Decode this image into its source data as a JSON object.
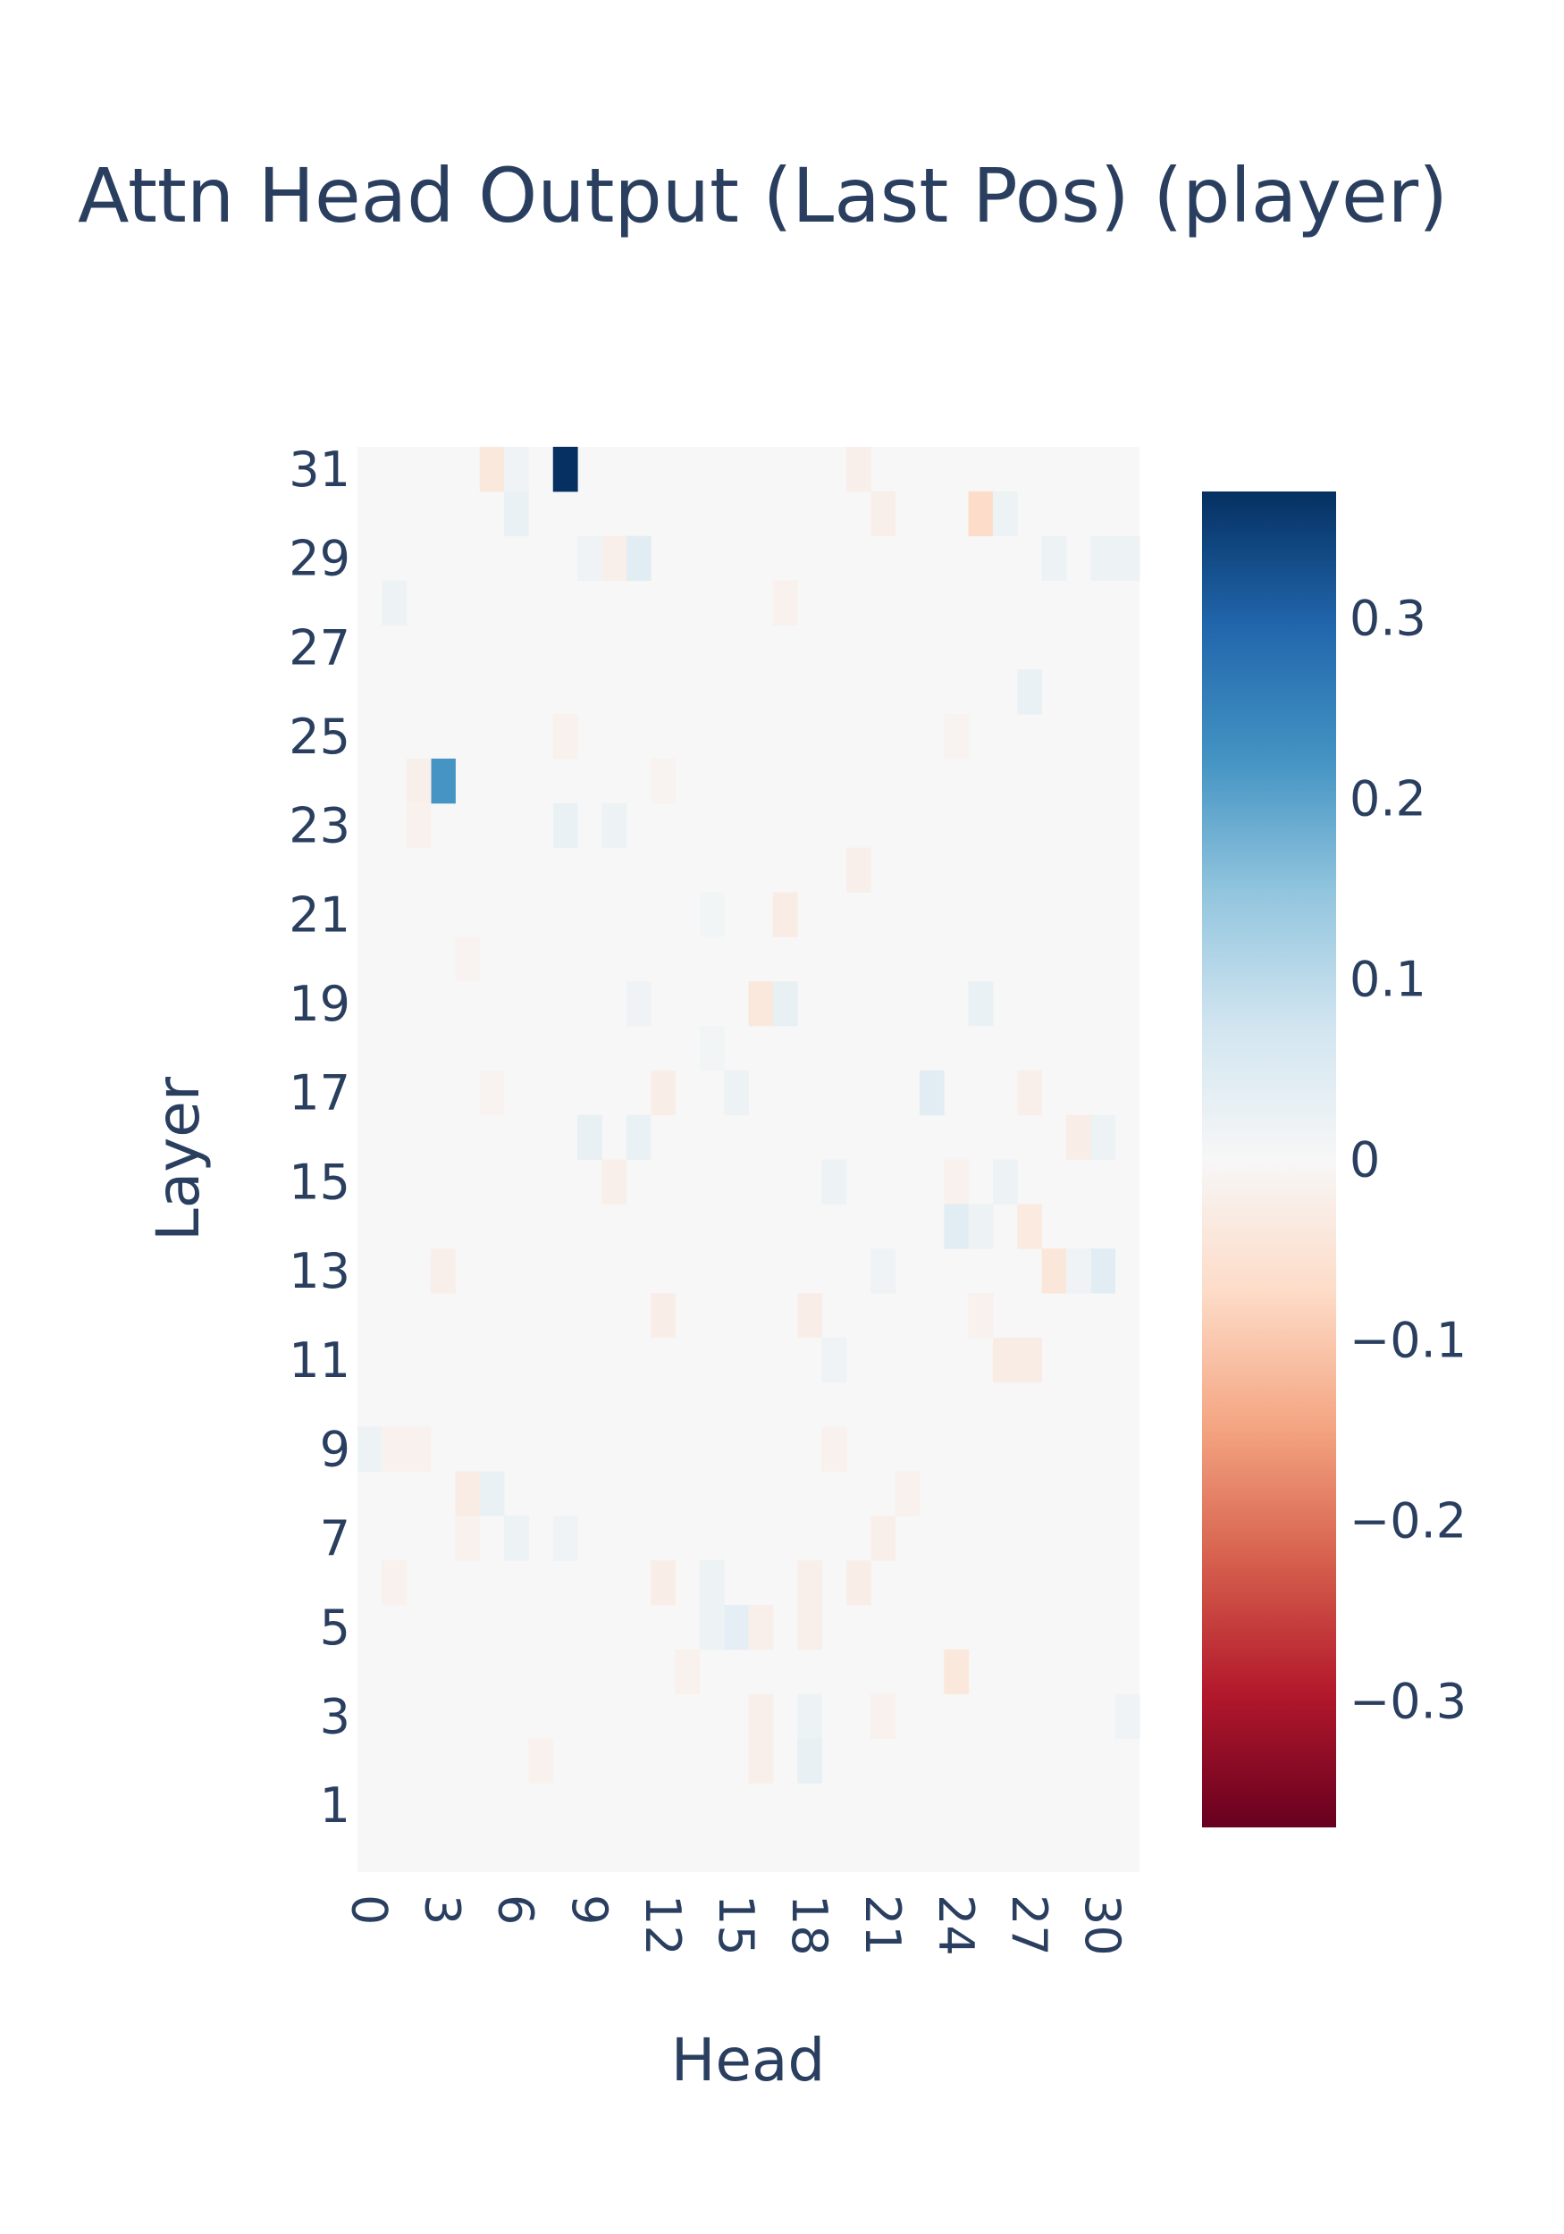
{
  "chart_data": {
    "type": "heatmap",
    "title": "Attn Head Output (Last Pos) (player)",
    "xlabel": "Head",
    "ylabel": "Layer",
    "x_range": [
      0,
      31
    ],
    "y_range": [
      0,
      31
    ],
    "x_ticks": [
      "0",
      "3",
      "6",
      "9",
      "12",
      "15",
      "18",
      "21",
      "24",
      "27",
      "30"
    ],
    "y_ticks": [
      "1",
      "3",
      "5",
      "7",
      "9",
      "11",
      "13",
      "15",
      "17",
      "19",
      "21",
      "23",
      "25",
      "27",
      "29",
      "31"
    ],
    "colorscale": "RdBu",
    "zmin": -0.37,
    "zmax": 0.37,
    "colorbar_ticks": [
      "0.3",
      "0.2",
      "0.1",
      "0",
      "−0.1",
      "−0.2",
      "−0.3"
    ],
    "colorbar_tick_values": [
      0.3,
      0.2,
      0.1,
      0,
      -0.1,
      -0.2,
      -0.3
    ],
    "background_value": 0,
    "cells": [
      {
        "layer": 31,
        "head": 8,
        "value": 0.37
      },
      {
        "layer": 31,
        "head": 5,
        "value": -0.04
      },
      {
        "layer": 31,
        "head": 6,
        "value": 0.015
      },
      {
        "layer": 31,
        "head": 20,
        "value": -0.02
      },
      {
        "layer": 30,
        "head": 6,
        "value": 0.025
      },
      {
        "layer": 30,
        "head": 21,
        "value": -0.02
      },
      {
        "layer": 30,
        "head": 25,
        "value": -0.07
      },
      {
        "layer": 30,
        "head": 26,
        "value": 0.02
      },
      {
        "layer": 29,
        "head": 11,
        "value": 0.04
      },
      {
        "layer": 29,
        "head": 10,
        "value": -0.02
      },
      {
        "layer": 29,
        "head": 9,
        "value": 0.015
      },
      {
        "layer": 29,
        "head": 28,
        "value": 0.02
      },
      {
        "layer": 29,
        "head": 30,
        "value": 0.02
      },
      {
        "layer": 29,
        "head": 31,
        "value": 0.02
      },
      {
        "layer": 28,
        "head": 1,
        "value": 0.02
      },
      {
        "layer": 28,
        "head": 17,
        "value": -0.015
      },
      {
        "layer": 26,
        "head": 27,
        "value": 0.025
      },
      {
        "layer": 25,
        "head": 8,
        "value": -0.015
      },
      {
        "layer": 25,
        "head": 24,
        "value": -0.01
      },
      {
        "layer": 24,
        "head": 3,
        "value": 0.22
      },
      {
        "layer": 24,
        "head": 2,
        "value": -0.02
      },
      {
        "layer": 24,
        "head": 12,
        "value": -0.01
      },
      {
        "layer": 23,
        "head": 8,
        "value": 0.025
      },
      {
        "layer": 23,
        "head": 10,
        "value": 0.02
      },
      {
        "layer": 23,
        "head": 2,
        "value": -0.015
      },
      {
        "layer": 22,
        "head": 20,
        "value": -0.02
      },
      {
        "layer": 21,
        "head": 17,
        "value": -0.03
      },
      {
        "layer": 21,
        "head": 14,
        "value": 0.01
      },
      {
        "layer": 20,
        "head": 4,
        "value": -0.01
      },
      {
        "layer": 19,
        "head": 16,
        "value": -0.04
      },
      {
        "layer": 19,
        "head": 17,
        "value": 0.03
      },
      {
        "layer": 19,
        "head": 25,
        "value": 0.025
      },
      {
        "layer": 19,
        "head": 11,
        "value": 0.015
      },
      {
        "layer": 18,
        "head": 14,
        "value": 0.01
      },
      {
        "layer": 17,
        "head": 23,
        "value": 0.04
      },
      {
        "layer": 17,
        "head": 12,
        "value": -0.025
      },
      {
        "layer": 17,
        "head": 15,
        "value": 0.02
      },
      {
        "layer": 17,
        "head": 27,
        "value": -0.02
      },
      {
        "layer": 17,
        "head": 5,
        "value": -0.01
      },
      {
        "layer": 16,
        "head": 9,
        "value": 0.03
      },
      {
        "layer": 16,
        "head": 11,
        "value": 0.025
      },
      {
        "layer": 16,
        "head": 29,
        "value": -0.025
      },
      {
        "layer": 16,
        "head": 30,
        "value": 0.02
      },
      {
        "layer": 15,
        "head": 19,
        "value": 0.02
      },
      {
        "layer": 15,
        "head": 26,
        "value": 0.02
      },
      {
        "layer": 15,
        "head": 10,
        "value": -0.02
      },
      {
        "layer": 15,
        "head": 24,
        "value": -0.015
      },
      {
        "layer": 14,
        "head": 24,
        "value": 0.04
      },
      {
        "layer": 14,
        "head": 25,
        "value": 0.02
      },
      {
        "layer": 14,
        "head": 27,
        "value": -0.035
      },
      {
        "layer": 13,
        "head": 28,
        "value": -0.045
      },
      {
        "layer": 13,
        "head": 30,
        "value": 0.04
      },
      {
        "layer": 13,
        "head": 29,
        "value": 0.015
      },
      {
        "layer": 13,
        "head": 3,
        "value": -0.02
      },
      {
        "layer": 13,
        "head": 21,
        "value": 0.015
      },
      {
        "layer": 12,
        "head": 12,
        "value": -0.025
      },
      {
        "layer": 12,
        "head": 18,
        "value": -0.025
      },
      {
        "layer": 12,
        "head": 25,
        "value": -0.015
      },
      {
        "layer": 11,
        "head": 26,
        "value": -0.03
      },
      {
        "layer": 11,
        "head": 27,
        "value": -0.03
      },
      {
        "layer": 11,
        "head": 19,
        "value": 0.015
      },
      {
        "layer": 9,
        "head": 0,
        "value": 0.02
      },
      {
        "layer": 9,
        "head": 1,
        "value": -0.015
      },
      {
        "layer": 9,
        "head": 2,
        "value": -0.015
      },
      {
        "layer": 9,
        "head": 19,
        "value": -0.015
      },
      {
        "layer": 8,
        "head": 4,
        "value": -0.03
      },
      {
        "layer": 8,
        "head": 5,
        "value": 0.025
      },
      {
        "layer": 8,
        "head": 22,
        "value": -0.015
      },
      {
        "layer": 7,
        "head": 6,
        "value": 0.02
      },
      {
        "layer": 7,
        "head": 8,
        "value": 0.015
      },
      {
        "layer": 7,
        "head": 21,
        "value": -0.02
      },
      {
        "layer": 7,
        "head": 4,
        "value": -0.015
      },
      {
        "layer": 6,
        "head": 12,
        "value": -0.025
      },
      {
        "layer": 6,
        "head": 14,
        "value": 0.02
      },
      {
        "layer": 6,
        "head": 20,
        "value": -0.025
      },
      {
        "layer": 6,
        "head": 18,
        "value": -0.02
      },
      {
        "layer": 6,
        "head": 1,
        "value": -0.015
      },
      {
        "layer": 5,
        "head": 15,
        "value": 0.035
      },
      {
        "layer": 5,
        "head": 14,
        "value": 0.02
      },
      {
        "layer": 5,
        "head": 16,
        "value": -0.02
      },
      {
        "layer": 5,
        "head": 18,
        "value": -0.02
      },
      {
        "layer": 4,
        "head": 24,
        "value": -0.04
      },
      {
        "layer": 4,
        "head": 13,
        "value": -0.015
      },
      {
        "layer": 3,
        "head": 18,
        "value": 0.02
      },
      {
        "layer": 3,
        "head": 16,
        "value": -0.02
      },
      {
        "layer": 3,
        "head": 31,
        "value": 0.015
      },
      {
        "layer": 3,
        "head": 21,
        "value": -0.015
      },
      {
        "layer": 2,
        "head": 18,
        "value": 0.03
      },
      {
        "layer": 2,
        "head": 16,
        "value": -0.02
      },
      {
        "layer": 2,
        "head": 7,
        "value": -0.015
      }
    ]
  }
}
